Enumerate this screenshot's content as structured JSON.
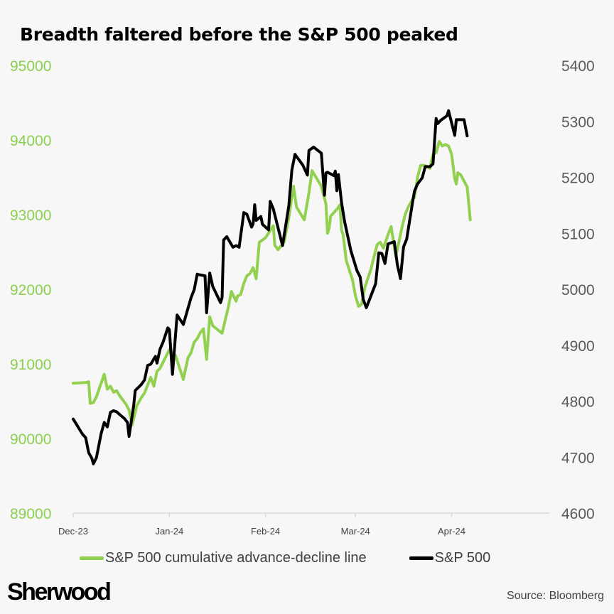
{
  "title": "Breadth faltered before the S&P 500 peaked",
  "brand": "Sherwood",
  "source": "Source: Bloomberg",
  "colors": {
    "ad_line": "#92d050",
    "spx": "#000000",
    "left_axis": "#8bcf4f",
    "right_axis": "#595959",
    "axis_line": "#d9d9d9"
  },
  "chart_data": {
    "type": "line",
    "title": "Breadth faltered before the S&P 500 peaked",
    "xlabel": "",
    "x_unit": "days since 1 Dec 2023",
    "x_ticks": [
      {
        "label": "Dec-23",
        "x": 0
      },
      {
        "label": "Jan-24",
        "x": 31
      },
      {
        "label": "Feb-24",
        "x": 62
      },
      {
        "label": "Mar-24",
        "x": 91
      },
      {
        "label": "Apr-24",
        "x": 122
      }
    ],
    "xlim": [
      0,
      151
    ],
    "y_left": {
      "label": "",
      "ylim": [
        89000,
        95000
      ],
      "ticks": [
        89000,
        90000,
        91000,
        92000,
        93000,
        94000,
        95000
      ]
    },
    "y_right": {
      "label": "",
      "ylim": [
        4600,
        5400
      ],
      "ticks": [
        4600,
        4700,
        4800,
        4900,
        5000,
        5100,
        5200,
        5300,
        5400
      ]
    },
    "grid": false,
    "legend_position": "bottom",
    "series": [
      {
        "name": "S&P 500 cumulative advance-decline line",
        "axis": "left",
        "color": "#92d050",
        "points": [
          [
            0,
            90740
          ],
          [
            4,
            90750
          ],
          [
            5,
            90760
          ],
          [
            5.5,
            90470
          ],
          [
            6.5,
            90480
          ],
          [
            7.5,
            90560
          ],
          [
            10,
            90860
          ],
          [
            11,
            90660
          ],
          [
            12,
            90700
          ],
          [
            13,
            90620
          ],
          [
            14,
            90640
          ],
          [
            15,
            90570
          ],
          [
            17,
            90460
          ],
          [
            18,
            90380
          ],
          [
            19,
            90180
          ],
          [
            20.5,
            90440
          ],
          [
            22,
            90550
          ],
          [
            23,
            90610
          ],
          [
            25,
            90820
          ],
          [
            26,
            90700
          ],
          [
            27,
            90900
          ],
          [
            28,
            90940
          ],
          [
            31,
            91190
          ],
          [
            32,
            91150
          ],
          [
            33,
            91110
          ],
          [
            35.5,
            90790
          ],
          [
            37,
            91080
          ],
          [
            38,
            91150
          ],
          [
            39,
            91290
          ],
          [
            40,
            91340
          ],
          [
            41,
            91420
          ],
          [
            42,
            91470
          ],
          [
            43,
            91060
          ],
          [
            44,
            91630
          ],
          [
            45,
            91510
          ],
          [
            48,
            91410
          ],
          [
            50,
            91760
          ],
          [
            51,
            91970
          ],
          [
            52.5,
            91840
          ],
          [
            53,
            91910
          ],
          [
            54,
            91930
          ],
          [
            55,
            92080
          ],
          [
            56,
            92180
          ],
          [
            57,
            92210
          ],
          [
            58,
            92290
          ],
          [
            59,
            92140
          ],
          [
            60,
            92630
          ],
          [
            62,
            92690
          ],
          [
            64,
            92820
          ],
          [
            64.5,
            92850
          ],
          [
            65,
            92590
          ],
          [
            66,
            92530
          ],
          [
            68,
            92630
          ],
          [
            69.5,
            92960
          ],
          [
            71,
            93380
          ],
          [
            72,
            93100
          ],
          [
            74.5,
            92930
          ],
          [
            76,
            93290
          ],
          [
            77,
            93590
          ],
          [
            80,
            93380
          ],
          [
            81.5,
            93140
          ],
          [
            82,
            92750
          ],
          [
            82.5,
            92820
          ],
          [
            83,
            92980
          ],
          [
            85,
            93070
          ],
          [
            86,
            93130
          ],
          [
            86.5,
            92790
          ],
          [
            87,
            92730
          ],
          [
            87.5,
            92570
          ],
          [
            88,
            92390
          ],
          [
            90,
            92130
          ],
          [
            91,
            91910
          ],
          [
            92,
            91770
          ],
          [
            93,
            91800
          ],
          [
            94,
            92020
          ],
          [
            96,
            92270
          ],
          [
            97,
            92440
          ],
          [
            98,
            92600
          ],
          [
            99,
            92630
          ],
          [
            100,
            92550
          ],
          [
            101.5,
            92730
          ],
          [
            102.5,
            92840
          ],
          [
            104,
            92440
          ],
          [
            106,
            92830
          ],
          [
            107,
            93000
          ],
          [
            108,
            93100
          ],
          [
            109.5,
            93210
          ],
          [
            110,
            93230
          ],
          [
            111,
            93500
          ],
          [
            112,
            93660
          ],
          [
            113,
            93660
          ],
          [
            114,
            93650
          ],
          [
            115,
            93620
          ],
          [
            116,
            93810
          ],
          [
            117,
            93830
          ],
          [
            118,
            93980
          ],
          [
            119,
            93920
          ],
          [
            120,
            93940
          ],
          [
            121,
            93920
          ],
          [
            122,
            93810
          ],
          [
            123,
            93480
          ],
          [
            123.5,
            93410
          ],
          [
            124,
            93560
          ],
          [
            125,
            93530
          ],
          [
            127,
            93370
          ],
          [
            128,
            92930
          ]
        ]
      },
      {
        "name": "S&P 500",
        "axis": "right",
        "color": "#000000",
        "points": [
          [
            0,
            4768
          ],
          [
            3,
            4741
          ],
          [
            4,
            4735
          ],
          [
            5,
            4708
          ],
          [
            6,
            4698
          ],
          [
            6.5,
            4688
          ],
          [
            7.5,
            4699
          ],
          [
            9,
            4742
          ],
          [
            10,
            4762
          ],
          [
            11,
            4754
          ],
          [
            12,
            4780
          ],
          [
            13,
            4783
          ],
          [
            14,
            4781
          ],
          [
            15,
            4776
          ],
          [
            16.5,
            4769
          ],
          [
            17.5,
            4762
          ],
          [
            18,
            4737
          ],
          [
            19.5,
            4792
          ],
          [
            20,
            4819
          ],
          [
            22,
            4830
          ],
          [
            23,
            4838
          ],
          [
            24,
            4864
          ],
          [
            25,
            4866
          ],
          [
            26.5,
            4880
          ],
          [
            27,
            4868
          ],
          [
            28,
            4893
          ],
          [
            29,
            4906
          ],
          [
            30.5,
            4931
          ],
          [
            31,
            4928
          ],
          [
            32,
            4848
          ],
          [
            33.5,
            4954
          ],
          [
            35.5,
            4937
          ],
          [
            36.5,
            4956
          ],
          [
            38,
            4985
          ],
          [
            39,
            4999
          ],
          [
            40,
            5027
          ],
          [
            40.5,
            5026
          ],
          [
            42.5,
            5024
          ],
          [
            43,
            4958
          ],
          [
            44,
            5029
          ],
          [
            45,
            5005
          ],
          [
            47.5,
            4976
          ],
          [
            48,
            4985
          ],
          [
            48.5,
            5088
          ],
          [
            49.5,
            5094
          ],
          [
            51.5,
            5075
          ],
          [
            52.5,
            5078
          ],
          [
            53.5,
            5075
          ],
          [
            55,
            5137
          ],
          [
            56,
            5134
          ],
          [
            57.5,
            5111
          ],
          [
            58,
            5117
          ],
          [
            58.5,
            5151
          ],
          [
            59,
            5123
          ],
          [
            60.5,
            5130
          ],
          [
            61,
            5116
          ],
          [
            63,
            5106
          ],
          [
            63.5,
            5157
          ],
          [
            64.5,
            5144
          ],
          [
            67.5,
            5078
          ],
          [
            69.5,
            5149
          ],
          [
            70.5,
            5213
          ],
          [
            71.5,
            5241
          ],
          [
            74,
            5222
          ],
          [
            75.5,
            5204
          ],
          [
            76,
            5248
          ],
          [
            77.5,
            5254
          ],
          [
            80,
            5243
          ],
          [
            80.5,
            5205
          ],
          [
            81,
            5168
          ],
          [
            81.5,
            5208
          ],
          [
            82,
            5209
          ],
          [
            84,
            5203
          ],
          [
            84.5,
            5211
          ],
          [
            85,
            5176
          ],
          [
            85.5,
            5205
          ],
          [
            86.5,
            5155
          ],
          [
            87.5,
            5121
          ],
          [
            89.5,
            5069
          ],
          [
            91.5,
            5033
          ],
          [
            92.5,
            5022
          ],
          [
            93.5,
            4982
          ],
          [
            94.5,
            4967
          ],
          [
            97.5,
            5010
          ],
          [
            98.5,
            5065
          ],
          [
            99.5,
            5064
          ],
          [
            100.5,
            5046
          ],
          [
            101.5,
            5081
          ],
          [
            103.5,
            5085
          ],
          [
            104.5,
            5044
          ],
          [
            105.5,
            5019
          ],
          [
            106.5,
            5076
          ],
          [
            107.5,
            5089
          ],
          [
            109.5,
            5159
          ],
          [
            110,
            5175
          ],
          [
            111,
            5188
          ],
          [
            112.5,
            5199
          ],
          [
            113.5,
            5219
          ],
          [
            115,
            5219
          ],
          [
            116,
            5224
          ],
          [
            117,
            5305
          ],
          [
            117.5,
            5296
          ],
          [
            118.5,
            5302
          ],
          [
            120.5,
            5310
          ],
          [
            121,
            5319
          ],
          [
            123,
            5275
          ],
          [
            123.5,
            5303
          ],
          [
            126,
            5303
          ],
          [
            127,
            5274
          ]
        ]
      }
    ]
  }
}
